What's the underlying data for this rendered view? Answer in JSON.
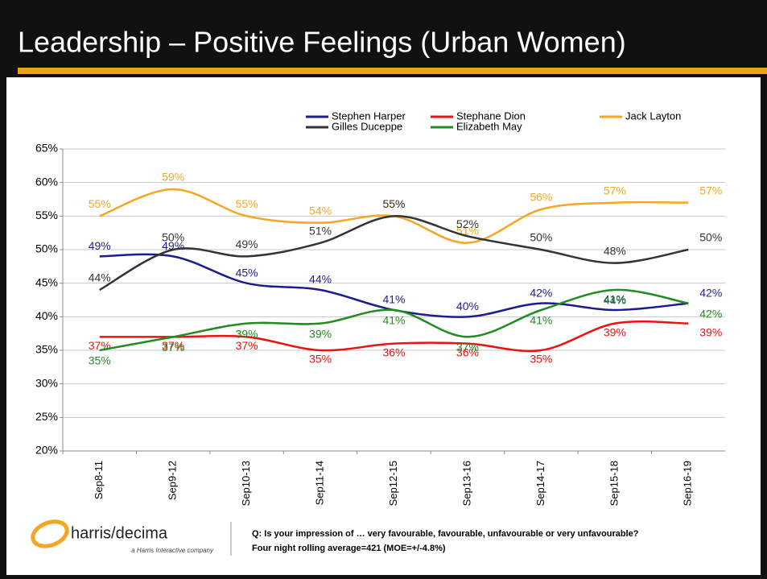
{
  "chart_data": {
    "type": "line",
    "title": "Leadership – Positive Feelings (Urban Women)",
    "categories": [
      "Sep8-11",
      "Sep9-12",
      "Sep10-13",
      "Sep11-14",
      "Sep12-15",
      "Sep13-16",
      "Sep14-17",
      "Sep15-18",
      "Sep16-19"
    ],
    "series": [
      {
        "name": "Stephen Harper",
        "color": "#1c1c8f",
        "values": [
          49,
          49,
          45,
          44,
          41,
          40,
          42,
          41,
          42
        ],
        "value_labels": [
          "49%",
          "49%",
          "45%",
          "44%",
          "41%",
          "40%",
          "42%",
          "41%",
          "42%"
        ]
      },
      {
        "name": "Stephane Dion",
        "color": "#ee1111",
        "values": [
          37,
          37,
          37,
          35,
          36,
          36,
          35,
          39,
          39
        ],
        "value_labels": [
          "37%",
          "37%",
          "37%",
          "35%",
          "36%",
          "36%",
          "35%",
          "39%",
          "39%"
        ]
      },
      {
        "name": "Jack Layton",
        "color": "#f5a623",
        "values": [
          55,
          59,
          55,
          54,
          55,
          51,
          56,
          57,
          57
        ],
        "value_labels": [
          "55%",
          "59%",
          "55%",
          "54%",
          "55%",
          "51%",
          "56%",
          "57%",
          "57%"
        ]
      },
      {
        "name": "Gilles Duceppe",
        "color": "#333333",
        "values": [
          44,
          50,
          49,
          51,
          55,
          52,
          50,
          48,
          50
        ],
        "value_labels": [
          "44%",
          "50%",
          "49%",
          "51%",
          "55%",
          "52%",
          "50%",
          "48%",
          "50%"
        ]
      },
      {
        "name": "Elizabeth May",
        "color": "#228b22",
        "values": [
          35,
          37,
          39,
          39,
          41,
          37,
          41,
          44,
          42
        ],
        "value_labels": [
          "35%",
          "37%",
          "39%",
          "39%",
          "41%",
          "37%",
          "41%",
          "44%",
          "42%"
        ]
      }
    ],
    "ylim": [
      20,
      65
    ],
    "yticks": [
      {
        "value": 20,
        "label": "20%"
      },
      {
        "value": 25,
        "label": "25%"
      },
      {
        "value": 30,
        "label": "30%"
      },
      {
        "value": 35,
        "label": "35%"
      },
      {
        "value": 40,
        "label": "40%"
      },
      {
        "value": 45,
        "label": "45%"
      },
      {
        "value": 50,
        "label": "50%"
      },
      {
        "value": 55,
        "label": "55%"
      },
      {
        "value": 60,
        "label": "60%"
      },
      {
        "value": 65,
        "label": "65%"
      }
    ],
    "grid": true,
    "logo": "harris/decima",
    "logo_tagline": "a Harris Interactive company",
    "notes": [
      "Q: Is your impression of … very favourable, favourable, unfavourable or very unfavourable?",
      "Four night rolling average=421 (MOE=+/-4.8%)"
    ]
  }
}
